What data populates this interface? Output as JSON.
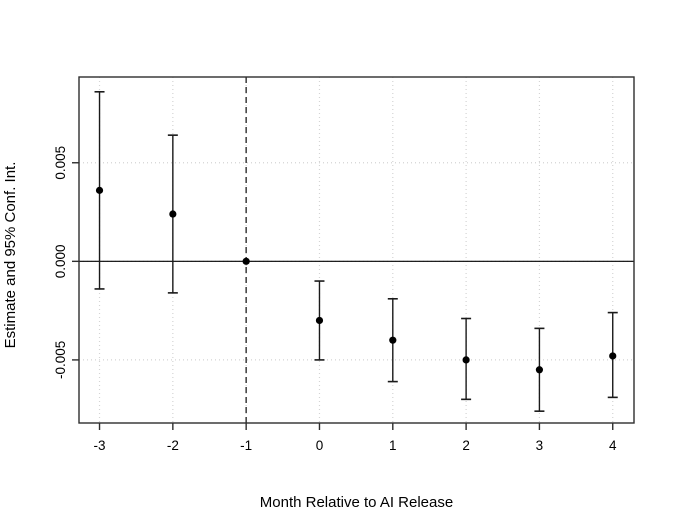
{
  "figure": {
    "background": "#ffffff"
  },
  "chart_data": {
    "type": "scatter",
    "subtype": "event-study-error-bars",
    "title": "",
    "xlabel": "Month Relative to AI Release",
    "ylabel": "Estimate and 95% Conf. Int.",
    "x": [
      -3,
      -2,
      -1,
      0,
      1,
      2,
      3,
      4
    ],
    "estimates": [
      0.0036,
      0.0024,
      0.0,
      -0.003,
      -0.004,
      -0.005,
      -0.0055,
      -0.0048
    ],
    "ci_lower": [
      -0.0014,
      -0.0016,
      0.0,
      -0.005,
      -0.0061,
      -0.007,
      -0.0076,
      -0.0069
    ],
    "ci_upper": [
      0.0086,
      0.0064,
      0.0,
      -0.001,
      -0.0019,
      -0.0029,
      -0.0034,
      -0.0026
    ],
    "x_ticks": [
      -3,
      -2,
      -1,
      0,
      1,
      2,
      3,
      4
    ],
    "x_tick_labels": [
      "-3",
      "-2",
      "-1",
      "0",
      "1",
      "2",
      "3",
      "4"
    ],
    "y_ticks": [
      -0.005,
      0.0,
      0.005
    ],
    "y_tick_labels": [
      "-0.005",
      "0.000",
      "0.005"
    ],
    "xlim": [
      -3.28,
      4.29
    ],
    "ylim": [
      -0.0082,
      0.00935
    ],
    "reference_point_x": -1,
    "reference_lines": {
      "horizontal_solid_y": 0,
      "vertical_dashed_x": -1
    },
    "grid": "dotted",
    "legend": "none",
    "colors": {
      "point": "#000000",
      "error_bar": "#1a1a1a",
      "grid": "#d4d4d4",
      "dashed_line": "#3a3a3a",
      "zero_line": "#000000",
      "border": "#2e2e2e",
      "tick": "#2e2e2e",
      "text": "#000000"
    }
  }
}
